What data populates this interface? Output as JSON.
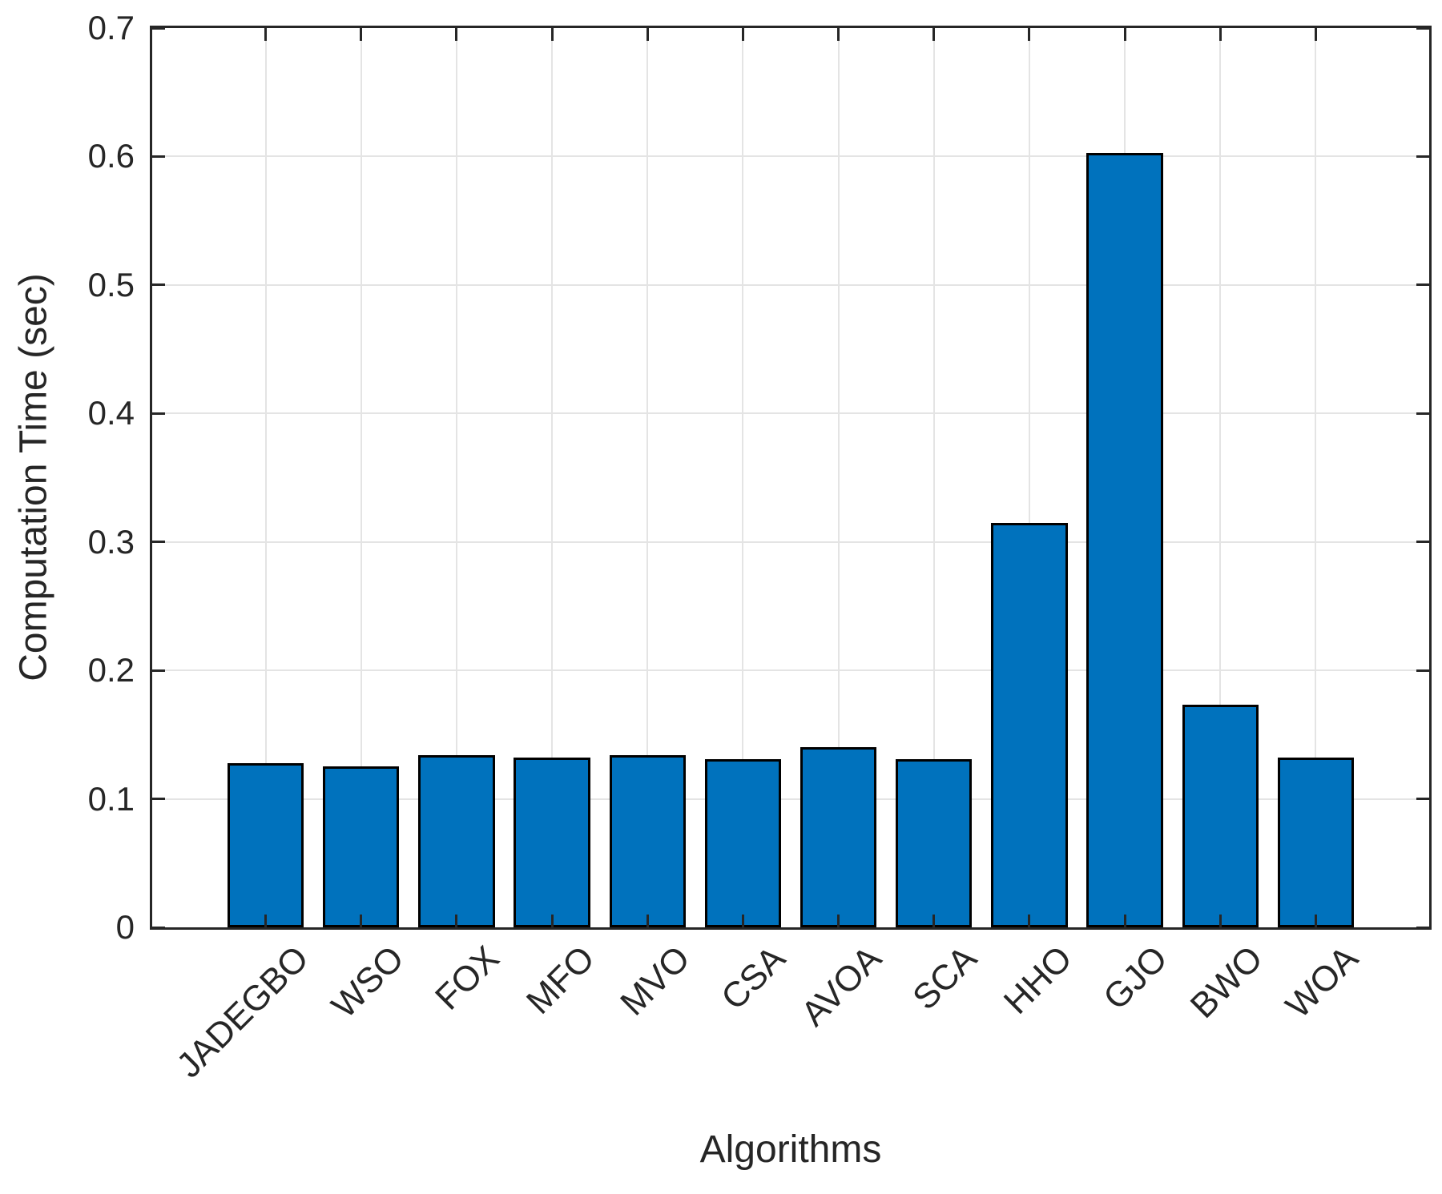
{
  "chart_data": {
    "type": "bar",
    "title": "",
    "categories": [
      "JADEGBO",
      "WSO",
      "FOX",
      "MFO",
      "MVO",
      "CSA",
      "AVOA",
      "SCA",
      "HHO",
      "GJO",
      "BWO",
      "WOA"
    ],
    "values": [
      0.128,
      0.125,
      0.134,
      0.132,
      0.134,
      0.131,
      0.14,
      0.131,
      0.315,
      0.603,
      0.173,
      0.132
    ],
    "xlabel": "Algorithms",
    "ylabel": "Computation Time (sec)",
    "ylim": [
      0,
      0.7
    ],
    "ytick_values": [
      0,
      0.1,
      0.2,
      0.3,
      0.4,
      0.5,
      0.6,
      0.7
    ],
    "ytick_labels": [
      "0",
      "0.1",
      "0.2",
      "0.3",
      "0.4",
      "0.5",
      "0.6",
      "0.7"
    ],
    "xtick_rotation_deg": 45,
    "grid": true,
    "legend": null,
    "bar_color": "#0072BD",
    "bar_edge_color": "#000000",
    "axis_color": "#262626",
    "grid_color": "#E4E4E4",
    "bar_width_fraction": 0.8
  }
}
